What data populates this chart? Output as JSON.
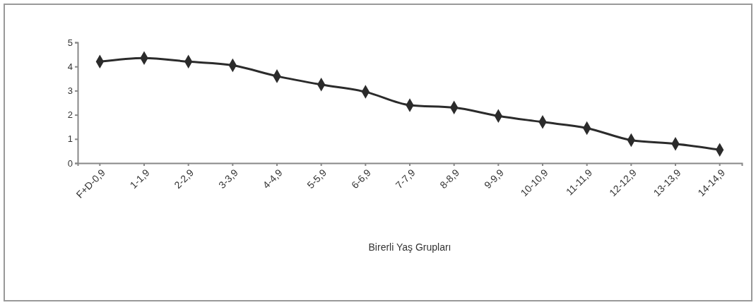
{
  "chart_data": {
    "type": "line",
    "xlabel": "Birerli Yaş Grupları",
    "categories": [
      "F+D-0,9",
      "1-1,9",
      "2-2,9",
      "3-3,9",
      "4-4,9",
      "5-5,9",
      "6-6,9",
      "7-7,9",
      "8-8,9",
      "9-9,9",
      "10-10,9",
      "11-11,9",
      "12-12,9",
      "13-13,9",
      "14-14,9"
    ],
    "series": [
      {
        "color": "#2b2b2b",
        "values": [
          4.2,
          4.35,
          4.2,
          4.05,
          3.6,
          3.25,
          2.95,
          2.4,
          2.3,
          1.95,
          1.7,
          1.45,
          0.95,
          0.8,
          0.55
        ]
      }
    ],
    "ylim": [
      0,
      5
    ],
    "yticks": [
      0,
      1,
      2,
      3,
      4,
      5
    ],
    "marker": "diamond",
    "line_style": "solid",
    "grid": false
  }
}
